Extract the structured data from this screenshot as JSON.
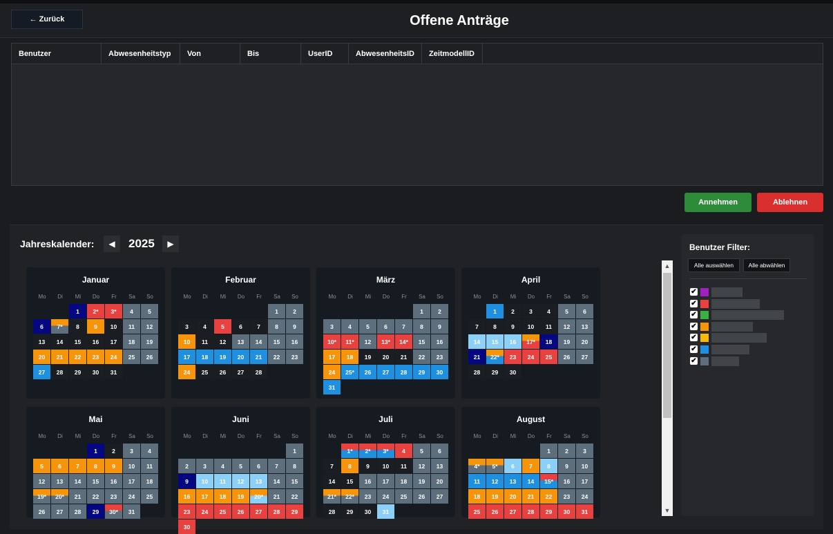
{
  "header": {
    "back_label": "← Zurück",
    "title": "Offene Anträge"
  },
  "table": {
    "columns": [
      "Benutzer",
      "Abwesenheitstyp",
      "Von",
      "Bis",
      "UserID",
      "AbwesenheitsID",
      "ZeitmodellID"
    ]
  },
  "actions": {
    "accept": "Annehmen",
    "reject": "Ablehnen"
  },
  "calendar": {
    "label": "Jahreskalender:",
    "year": "2025",
    "prev": "◀",
    "next": "▶",
    "weekdays": [
      "Mo",
      "Di",
      "Mi",
      "Do",
      "Fr",
      "Sa",
      "So"
    ],
    "colors": {
      "k": "#1a1d22",
      "g": "#5d6f7c",
      "o": "#f6940b",
      "b": "#1f8fe0",
      "lb": "#8cd0f7",
      "r": "#e74140",
      "n": "#050782"
    },
    "months": [
      {
        "name": "Januar",
        "first": 2,
        "days": [
          "b:k",
          "n:1",
          "r:2*",
          "r:3*",
          "g:4",
          "g:5",
          "n:6",
          "o/g:7*",
          "k:8",
          "o:9",
          "k:10",
          "g:11",
          "g:12",
          "k:13",
          "k:14",
          "k:15",
          "k:16",
          "k:17",
          "g:18",
          "g:19",
          "o:20",
          "o:21",
          "o:22",
          "o:23",
          "o:24",
          "g:25",
          "g:26",
          "b:27",
          "k:28",
          "k:29",
          "k:30",
          "k:31"
        ]
      },
      {
        "name": "Februar",
        "first": 5,
        "days": [
          "g:1",
          "g:2",
          "k:3",
          "k:4",
          "r:5",
          "k:6",
          "k:7",
          "g:8",
          "g:9",
          "o:10",
          "k:11",
          "k:12",
          "g:13",
          "g:14",
          "g:15",
          "g:16",
          "b:17",
          "b:18",
          "b:19",
          "b:20",
          "b:21",
          "g:22",
          "g:23",
          "o:24",
          "k:25",
          "k:26",
          "k:27",
          "k:28"
        ]
      },
      {
        "name": "März",
        "first": 5,
        "days": [
          "g:1",
          "g:2",
          "g:3",
          "g:4",
          "g:5",
          "g:6",
          "g:7",
          "g:8",
          "g:9",
          "r:10*",
          "r:11*",
          "g:12",
          "r:13*",
          "r:14*",
          "g:15",
          "g:16",
          "o:17",
          "o:18",
          "k:19",
          "k:20",
          "k:21",
          "g:22",
          "g:23",
          "o:24",
          "b:25*",
          "b:26",
          "b:27",
          "b:28",
          "b:29",
          "b:30",
          "b:31"
        ]
      },
      {
        "name": "April",
        "first": 1,
        "days": [
          "b:1",
          "k:2",
          "k:3",
          "k:4",
          "g:5",
          "g:6",
          "k:7",
          "k:8",
          "k:9",
          "k:10",
          "k:11",
          "g:12",
          "g:13",
          "lb:14",
          "lb:15",
          "lb:16",
          "o/r:17*",
          "n:18",
          "g:19",
          "g:20",
          "n:21",
          "o/b:22*",
          "r:23",
          "r:24",
          "r:25",
          "g:26",
          "g:27",
          "k:28",
          "k:29",
          "k:30"
        ]
      },
      {
        "name": "Mai",
        "first": 3,
        "days": [
          "n:1",
          "k:2",
          "g:3",
          "g:4",
          "o:5",
          "o:6",
          "o:7",
          "o:8",
          "o:9",
          "g:10",
          "g:11",
          "g:12",
          "g:13",
          "g:14",
          "g:15",
          "g:16",
          "g:17",
          "g:18",
          "o/g:19*",
          "o/g:20*",
          "g:21",
          "g:22",
          "g:23",
          "g:24",
          "g:25",
          "g:26",
          "g:27",
          "g:28",
          "n:29",
          "r/g:30*",
          "g:31"
        ]
      },
      {
        "name": "Juni",
        "first": 6,
        "days": [
          "g:1",
          "g:2",
          "g:3",
          "g:4",
          "g:5",
          "g:6",
          "g:7",
          "g:8",
          "n:9",
          "lb:10",
          "lb:11",
          "lb:12",
          "lb:13",
          "g:14",
          "g:15",
          "o:16",
          "o:17",
          "o:18",
          "o:19",
          "o/lb:20*",
          "g:21",
          "g:22",
          "r:23",
          "r:24",
          "r:25",
          "r:26",
          "r:27",
          "r:28",
          "r:29",
          "r:30"
        ]
      },
      {
        "name": "Juli",
        "first": 1,
        "days": [
          "r/b:1*",
          "r/b:2*",
          "r/b:3*",
          "r:4",
          "g:5",
          "g:6",
          "k:7",
          "o:8",
          "k:9",
          "k:10",
          "k:11",
          "g:12",
          "g:13",
          "k:14",
          "k:15",
          "g:16",
          "g:17",
          "g:18",
          "g:19",
          "g:20",
          "o/g:21*",
          "o/g:22*",
          "g:23",
          "g:24",
          "g:25",
          "g:26",
          "g:27",
          "k:28",
          "k:29",
          "k:30",
          "lb:31"
        ]
      },
      {
        "name": "August",
        "first": 4,
        "days": [
          "g:1",
          "g:2",
          "g:3",
          "o/g:4*",
          "o/g:5*",
          "lb:6",
          "o:7",
          "lb:8",
          "g:9",
          "g:10",
          "b:11",
          "b:12",
          "b:13",
          "b:14",
          "r/b:15*",
          "g:16",
          "g:17",
          "o:18",
          "o:19",
          "o:20",
          "o:21",
          "o:22",
          "g:23",
          "g:24",
          "r:25",
          "r:26",
          "r:27",
          "r:28",
          "r:29",
          "r:30",
          "r:31"
        ]
      }
    ]
  },
  "filter": {
    "title": "Benutzer Filter:",
    "select_all": "Alle auswählen",
    "deselect_all": "Alle abwählen",
    "check": "✔",
    "users": [
      {
        "color": "#a020c0"
      },
      {
        "color": "#e74140"
      },
      {
        "color": "#3cb043"
      },
      {
        "color": "#f6940b"
      },
      {
        "color": "#f7b80c"
      },
      {
        "color": "#1f8fe0"
      },
      {
        "color": "#5d6f7c"
      }
    ]
  },
  "scrollbar": {
    "up": "▲",
    "down": "▼"
  }
}
